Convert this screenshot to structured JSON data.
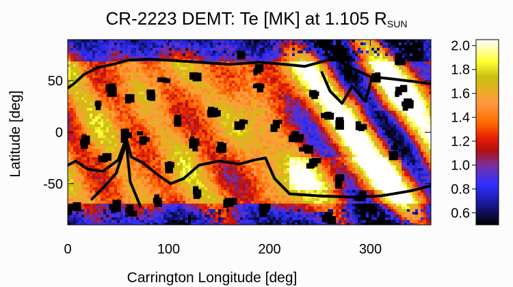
{
  "chart_data": {
    "type": "heatmap",
    "title_main": "CR-2223 DEMT: Te [MK] at 1.105 R",
    "title_subscript": "SUN",
    "xlabel": "Carrington Longitude [deg]",
    "ylabel": "Latitude [deg]",
    "xlim": [
      0,
      360
    ],
    "ylim": [
      -90,
      90
    ],
    "x_ticks": [
      0,
      100,
      200,
      300
    ],
    "y_ticks": [
      -50,
      0,
      50
    ],
    "colorbar": {
      "range": [
        0.5,
        2.05
      ],
      "ticks": [
        0.6,
        0.8,
        1.0,
        1.2,
        1.4,
        1.6,
        1.8,
        2.0
      ],
      "tick_labels": [
        "0.6",
        "0.8",
        "1.0",
        "1.2",
        "1.4",
        "1.6",
        "1.8",
        "2.0"
      ],
      "colormap": [
        [
          0.0,
          "#000000"
        ],
        [
          0.12,
          "#1a1aa0"
        ],
        [
          0.22,
          "#3030ff"
        ],
        [
          0.32,
          "#7a2fa0"
        ],
        [
          0.4,
          "#b01010"
        ],
        [
          0.47,
          "#e82000"
        ],
        [
          0.55,
          "#ff6a00"
        ],
        [
          0.66,
          "#ff9a40"
        ],
        [
          0.73,
          "#e6b020"
        ],
        [
          0.8,
          "#c8c010"
        ],
        [
          0.88,
          "#ffff30"
        ],
        [
          1.0,
          "#ffffff"
        ]
      ]
    },
    "contour_lines": [
      {
        "name": "",
        "points": [
          [
            0,
            43
          ],
          [
            6,
            47
          ],
          [
            16,
            56
          ],
          [
            30,
            63
          ],
          [
            45,
            66
          ],
          [
            60,
            70
          ],
          [
            80,
            71
          ],
          [
            100,
            70
          ],
          [
            130,
            68
          ],
          [
            160,
            66
          ],
          [
            190,
            68
          ],
          [
            215,
            66
          ],
          [
            235,
            64
          ],
          [
            250,
            68
          ],
          [
            265,
            72
          ],
          [
            280,
            63
          ],
          [
            300,
            54
          ],
          [
            320,
            52
          ],
          [
            345,
            49
          ],
          [
            360,
            47
          ]
        ]
      },
      {
        "name": "",
        "points": [
          [
            0,
            -32
          ],
          [
            8,
            -28
          ],
          [
            20,
            -36
          ],
          [
            35,
            -38
          ],
          [
            50,
            -27
          ],
          [
            58,
            -6
          ],
          [
            63,
            -24
          ],
          [
            75,
            -30
          ],
          [
            90,
            -42
          ],
          [
            102,
            -50
          ],
          [
            115,
            -45
          ],
          [
            130,
            -32
          ],
          [
            150,
            -28
          ],
          [
            170,
            -31
          ],
          [
            185,
            -27
          ],
          [
            196,
            -25
          ],
          [
            205,
            -45
          ],
          [
            220,
            -60
          ],
          [
            250,
            -62
          ],
          [
            280,
            -63
          ],
          [
            310,
            -62
          ],
          [
            340,
            -57
          ],
          [
            360,
            -52
          ]
        ]
      },
      {
        "name": "",
        "points": [
          [
            24,
            -65
          ],
          [
            37,
            -52
          ],
          [
            48,
            -40
          ],
          [
            58,
            -10
          ],
          [
            62,
            -48
          ],
          [
            72,
            -72
          ]
        ]
      },
      {
        "name": "",
        "points": [
          [
            252,
            58
          ],
          [
            260,
            40
          ],
          [
            272,
            28
          ],
          [
            282,
            45
          ],
          [
            295,
            30
          ],
          [
            300,
            47
          ]
        ]
      }
    ],
    "black_regions": [
      [
        30,
        25
      ],
      [
        42,
        42
      ],
      [
        63,
        32
      ],
      [
        83,
        36
      ],
      [
        95,
        50
      ],
      [
        126,
        55
      ],
      [
        190,
        62
      ],
      [
        187,
        43
      ],
      [
        144,
        20
      ],
      [
        245,
        36
      ],
      [
        255,
        18
      ],
      [
        305,
        53
      ],
      [
        335,
        28
      ],
      [
        290,
        5
      ],
      [
        330,
        40
      ],
      [
        18,
        -8
      ],
      [
        36,
        -25
      ],
      [
        58,
        -2
      ],
      [
        72,
        -5
      ],
      [
        100,
        -32
      ],
      [
        124,
        -10
      ],
      [
        152,
        -14
      ],
      [
        170,
        8
      ],
      [
        205,
        6
      ],
      [
        225,
        -4
      ],
      [
        268,
        12
      ],
      [
        322,
        -18
      ],
      [
        235,
        -18
      ],
      [
        270,
        -45
      ],
      [
        290,
        -62
      ],
      [
        5,
        -72
      ],
      [
        45,
        -70
      ],
      [
        60,
        -76
      ],
      [
        88,
        -66
      ],
      [
        160,
        -65
      ],
      [
        195,
        -74
      ],
      [
        326,
        72
      ],
      [
        130,
        -58
      ],
      [
        242,
        -30
      ],
      [
        110,
        12
      ],
      [
        258,
        -82
      ],
      [
        172,
        76
      ]
    ]
  }
}
